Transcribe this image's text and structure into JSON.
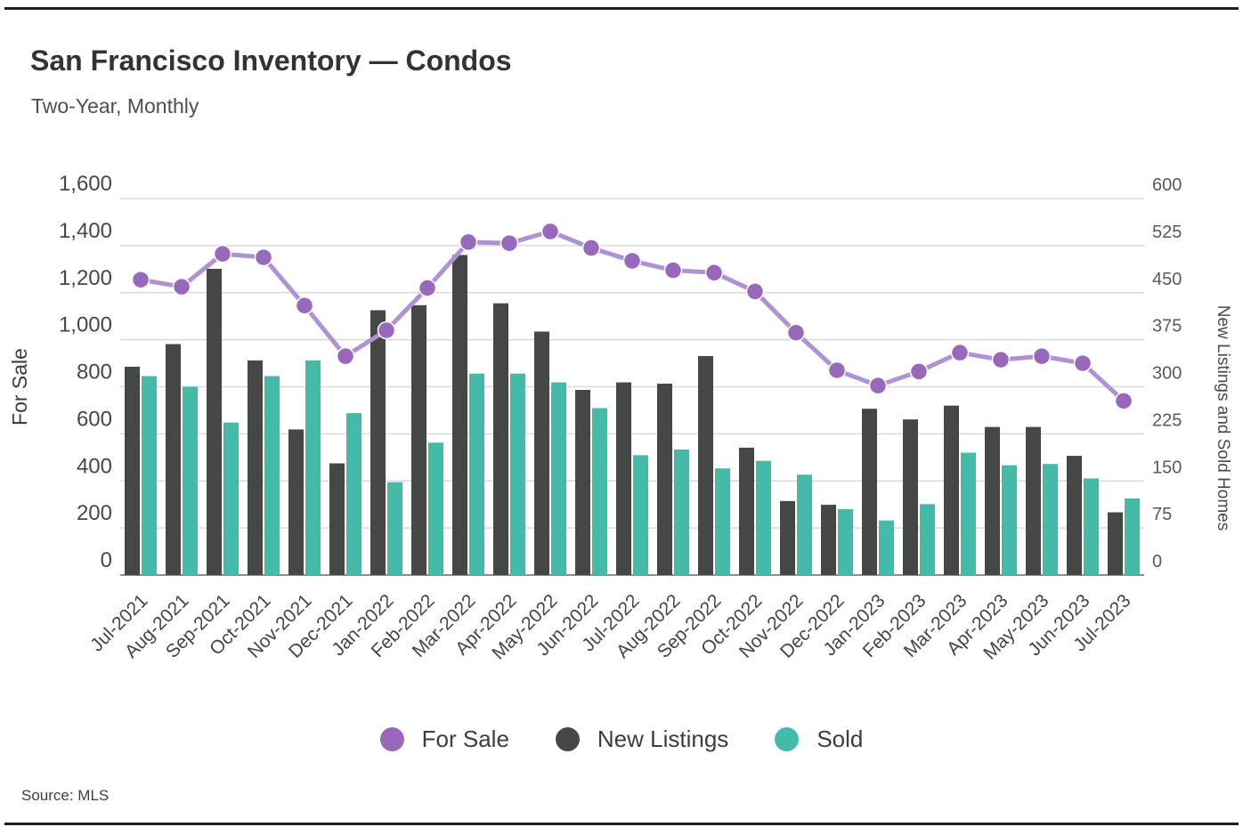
{
  "header": {
    "title": "San Francisco Inventory — Condos",
    "subtitle": "Two-Year, Monthly"
  },
  "footer": {
    "source": "Source: MLS"
  },
  "chart_data": {
    "type": "bar",
    "subtype": "grouped-bars-with-line",
    "title": "San Francisco Inventory — Condos",
    "subtitle": "Two-Year, Monthly",
    "categories": [
      "Jul-2021",
      "Aug-2021",
      "Sep-2021",
      "Oct-2021",
      "Nov-2021",
      "Dec-2021",
      "Jan-2022",
      "Feb-2022",
      "Mar-2022",
      "Apr-2022",
      "May-2022",
      "Jun-2022",
      "Jul-2022",
      "Aug-2022",
      "Sep-2022",
      "Oct-2022",
      "Nov-2022",
      "Dec-2022",
      "Jan-2023",
      "Feb-2023",
      "Mar-2023",
      "Apr-2023",
      "May-2023",
      "Jun-2023",
      "Jul-2023"
    ],
    "series": [
      {
        "name": "For Sale",
        "type": "line",
        "axis": "left",
        "color": "#ad93d4",
        "point_color": "#9869bb",
        "values": [
          1255,
          1225,
          1365,
          1350,
          1145,
          930,
          1040,
          1220,
          1415,
          1410,
          1460,
          1390,
          1335,
          1295,
          1285,
          1205,
          1030,
          870,
          805,
          865,
          945,
          915,
          930,
          900,
          740
        ]
      },
      {
        "name": "New Listings",
        "type": "bar",
        "axis": "right",
        "color": "#454747",
        "values": [
          332,
          368,
          488,
          342,
          232,
          178,
          422,
          430,
          510,
          433,
          388,
          295,
          307,
          305,
          349,
          203,
          118,
          112,
          265,
          248,
          270,
          236,
          236,
          190,
          100
        ]
      },
      {
        "name": "Sold",
        "type": "bar",
        "axis": "right",
        "color": "#44bba8",
        "values": [
          317,
          300,
          243,
          317,
          342,
          258,
          148,
          211,
          321,
          321,
          307,
          266,
          191,
          200,
          170,
          182,
          160,
          105,
          87,
          113,
          195,
          175,
          177,
          154,
          122
        ]
      }
    ],
    "left_axis": {
      "title": "For Sale",
      "min": 0,
      "max": 1600,
      "tick_step": 200,
      "tick_labels": [
        "0",
        "200",
        "400",
        "600",
        "800",
        "1,000",
        "1,200",
        "1,400",
        "1,600"
      ]
    },
    "right_axis": {
      "title": "New Listings and Sold Homes",
      "min": 0,
      "max": 600,
      "tick_step": 75,
      "tick_labels": [
        "0",
        "75",
        "150",
        "225",
        "300",
        "375",
        "450",
        "525",
        "600"
      ]
    },
    "grid": true,
    "legend_position": "bottom"
  }
}
